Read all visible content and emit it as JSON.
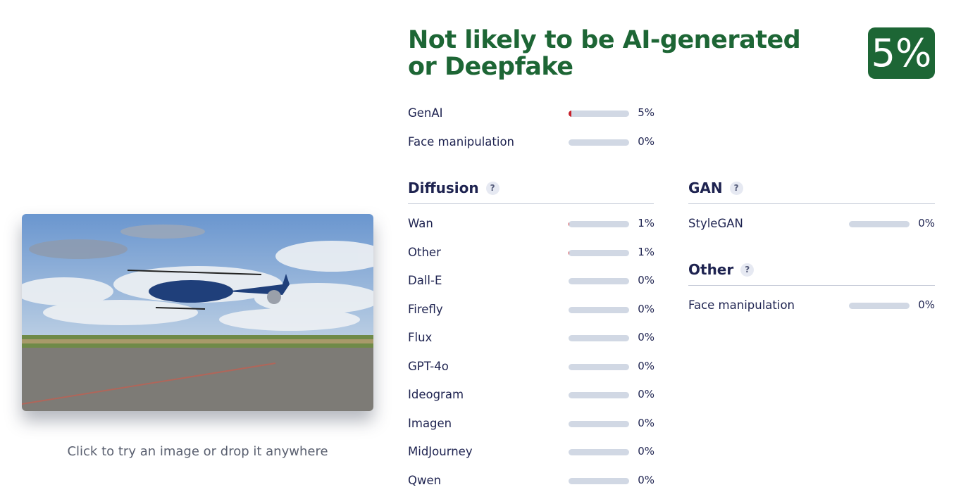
{
  "verdict": "Not likely to be AI-generated or Deepfake",
  "score": "5%",
  "caption": "Click to try an image or drop it anywhere",
  "colors": {
    "verdict": "#1d6635",
    "bar_fill": "#c8202a",
    "bar_track": "#d1d8e4"
  },
  "summary": [
    {
      "label": "GenAI",
      "value": 5,
      "pct": "5%"
    },
    {
      "label": "Face manipulation",
      "value": 0,
      "pct": "0%"
    }
  ],
  "diffusion": {
    "title": "Diffusion",
    "help": "?",
    "items": [
      {
        "label": "Wan",
        "value": 1,
        "pct": "1%"
      },
      {
        "label": "Other",
        "value": 1,
        "pct": "1%"
      },
      {
        "label": "Dall-E",
        "value": 0,
        "pct": "0%"
      },
      {
        "label": "Firefly",
        "value": 0,
        "pct": "0%"
      },
      {
        "label": "Flux",
        "value": 0,
        "pct": "0%"
      },
      {
        "label": "GPT-4o",
        "value": 0,
        "pct": "0%"
      },
      {
        "label": "Ideogram",
        "value": 0,
        "pct": "0%"
      },
      {
        "label": "Imagen",
        "value": 0,
        "pct": "0%"
      },
      {
        "label": "MidJourney",
        "value": 0,
        "pct": "0%"
      },
      {
        "label": "Qwen",
        "value": 0,
        "pct": "0%"
      }
    ]
  },
  "gan": {
    "title": "GAN",
    "help": "?",
    "items": [
      {
        "label": "StyleGAN",
        "value": 0,
        "pct": "0%"
      }
    ]
  },
  "other": {
    "title": "Other",
    "help": "?",
    "items": [
      {
        "label": "Face manipulation",
        "value": 0,
        "pct": "0%"
      }
    ]
  }
}
